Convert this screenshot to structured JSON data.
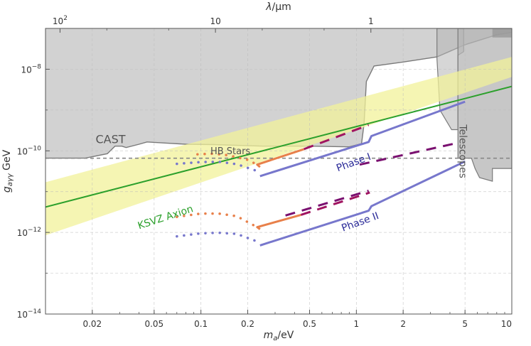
{
  "chart_data": {
    "type": "line",
    "title": "",
    "x_scale": "log",
    "y_scale": "log",
    "xlim": [
      0.01,
      10
    ],
    "ylim": [
      1e-14,
      1e-07
    ],
    "grid": true,
    "xlabel": "m_a/eV",
    "xlabel_parts": {
      "base": "m",
      "sub": "a",
      "rest": "/eV"
    },
    "ylabel_parts": {
      "base": "g",
      "sub": "aγγ",
      "rest": " GeV"
    },
    "top_axis": {
      "label_parts": {
        "base": "λ",
        "rest": "/μm"
      },
      "ticks": [
        {
          "wavelength_um": 100,
          "mass_eV": 0.0124,
          "label_base": "10",
          "label_exp": "2"
        },
        {
          "wavelength_um": 10,
          "mass_eV": 0.124,
          "label": "10"
        },
        {
          "wavelength_um": 1,
          "mass_eV": 1.24,
          "label": "1"
        }
      ]
    },
    "x_ticks": [
      {
        "value": 0.02,
        "label": "0.02"
      },
      {
        "value": 0.05,
        "label": "0.05"
      },
      {
        "value": 0.1,
        "label": "0.1"
      },
      {
        "value": 0.2,
        "label": "0.2"
      },
      {
        "value": 0.5,
        "label": "0.5"
      },
      {
        "value": 1,
        "label": "1"
      },
      {
        "value": 2,
        "label": "2"
      },
      {
        "value": 5,
        "label": "5"
      },
      {
        "value": 10,
        "label": "10"
      }
    ],
    "y_ticks": [
      {
        "value": 1e-14,
        "label_base": "10",
        "label_exp": "−14"
      },
      {
        "value": 1e-12,
        "label_base": "10",
        "label_exp": "−12"
      },
      {
        "value": 1e-10,
        "label_base": "10",
        "label_exp": "−10"
      },
      {
        "value": 1e-08,
        "label_base": "10",
        "label_exp": "−8"
      }
    ],
    "regions": [
      {
        "name": "CAST",
        "label": "CAST",
        "color": "#d2d2d2",
        "edge": "#7a7a7a",
        "boundary": [
          [
            0.01,
            6.6e-11
          ],
          [
            0.018,
            6.6e-11
          ],
          [
            0.025,
            8.5e-11
          ],
          [
            0.028,
            1.3e-10
          ],
          [
            0.031,
            1.3e-10
          ],
          [
            0.033,
            1.2e-10
          ],
          [
            0.04,
            1.45e-10
          ],
          [
            0.045,
            1.65e-10
          ],
          [
            0.06,
            1.55e-10
          ],
          [
            0.08,
            1.45e-10
          ],
          [
            0.12,
            1.42e-10
          ],
          [
            0.25,
            1.3e-10
          ],
          [
            0.5,
            1.3e-10
          ],
          [
            0.9,
            1.25e-10
          ],
          [
            1.08,
            1.5e-10
          ],
          [
            1.12,
            4.5e-10
          ],
          [
            1.16,
            5e-09
          ],
          [
            1.3,
            1.2e-08
          ],
          [
            2,
            1.5e-08
          ],
          [
            3.3,
            2e-08
          ],
          [
            5,
            4e-08
          ],
          [
            8,
            7e-08
          ],
          [
            10,
            8e-08
          ]
        ]
      },
      {
        "name": "Telescopes",
        "label": "Telescopes",
        "color": "#b4b4b4",
        "edge": "#7a7a7a",
        "polygon": [
          [
            3.3,
            1e-07
          ],
          [
            3.3,
            1.8e-08
          ],
          [
            3.45,
            1e-09
          ],
          [
            4.1,
            3.3e-10
          ],
          [
            4.5,
            3.3e-10
          ],
          [
            4.5,
            2.2e-08
          ],
          [
            4.9,
            2.7e-08
          ],
          [
            4.9,
            1e-07
          ]
        ],
        "band": [
          [
            4.5,
            1e-07
          ],
          [
            4.5,
            6.6e-11
          ],
          [
            5.5,
            6.6e-11
          ],
          [
            5.8,
            3.7e-11
          ],
          [
            6.2,
            2.2e-11
          ],
          [
            7.5,
            1.8e-11
          ],
          [
            7.5,
            3.7e-11
          ],
          [
            10,
            3.7e-11
          ],
          [
            10,
            1e-07
          ]
        ],
        "cap": [
          [
            7.5,
            1e-07
          ],
          [
            7.5,
            6e-08
          ],
          [
            10,
            6e-08
          ],
          [
            10,
            1e-07
          ]
        ]
      },
      {
        "name": "KSVZ band",
        "color": "#f2f29a",
        "lower": [
          [
            0.01,
            8.5e-13
          ],
          [
            10,
            6.5e-09
          ]
        ],
        "upper": [
          [
            0.01,
            1.7e-11
          ],
          [
            10,
            2e-08
          ]
        ]
      }
    ],
    "reference_lines": [
      {
        "name": "HB Stars",
        "label": "HB Stars",
        "y": 6.6e-11,
        "style": "dashed",
        "color": "#888888"
      }
    ],
    "series": [
      {
        "name": "KSVZ Axion",
        "label": "KSVZ Axion",
        "color": "#2ca02c",
        "style": "solid",
        "points": [
          [
            0.01,
            4.2e-12
          ],
          [
            10,
            3.8e-09
          ]
        ]
      },
      {
        "name": "Phase I",
        "label": "Phase I",
        "color": "#7777cc",
        "style": "solid",
        "points": [
          [
            0.24,
            2.4e-11
          ],
          [
            1.2,
            1.65e-10
          ],
          [
            1.25,
            2.3e-10
          ],
          [
            5,
            1.6e-09
          ]
        ]
      },
      {
        "name": "Phase II",
        "label": "Phase II",
        "color": "#7777cc",
        "style": "solid",
        "points": [
          [
            0.24,
            4.8e-13
          ],
          [
            1.2,
            3.4e-12
          ],
          [
            1.25,
            4.4e-12
          ],
          [
            5,
            5.5e-11
          ]
        ]
      },
      {
        "name": "",
        "color": "#e8804a",
        "style": "solid",
        "points": [
          [
            0.24,
            4e-11
          ],
          [
            0.23,
            4.6e-11
          ],
          [
            0.46,
            1.1e-10
          ]
        ]
      },
      {
        "name": "",
        "color": "#e8804a",
        "style": "solid",
        "points": [
          [
            0.24,
            1.2e-12
          ],
          [
            0.23,
            1.35e-12
          ],
          [
            0.44,
            2.7e-12
          ]
        ]
      },
      {
        "name": "",
        "color": "#a01460",
        "style": "dashed",
        "points": [
          [
            0.46,
            1.1e-10
          ],
          [
            1.2,
            4.3e-10
          ]
        ]
      },
      {
        "name": "",
        "color": "#a01460",
        "style": "dashed",
        "points": [
          [
            0.44,
            2.7e-12
          ],
          [
            1.22,
            9.5e-12
          ]
        ]
      },
      {
        "name": "",
        "color": "#7a1070",
        "style": "dashed",
        "points": [
          [
            0.35,
            2.6e-12
          ],
          [
            1.2,
            1.05e-11
          ]
        ]
      },
      {
        "name": "",
        "color": "#7a1070",
        "style": "dashed",
        "points": [
          [
            1.05,
            4.6e-11
          ],
          [
            4.6,
            1.6e-10
          ]
        ]
      },
      {
        "name": "",
        "color": "#e8804a",
        "style": "dotted",
        "points": [
          [
            0.095,
            8.2e-11
          ],
          [
            0.12,
            8.5e-11
          ],
          [
            0.15,
            7.8e-11
          ],
          [
            0.2,
            6e-11
          ],
          [
            0.23,
            4.6e-11
          ]
        ]
      },
      {
        "name": "",
        "color": "#7777cc",
        "style": "dotted",
        "points": [
          [
            0.07,
            4.8e-11
          ],
          [
            0.1,
            5.3e-11
          ],
          [
            0.13,
            5.4e-11
          ],
          [
            0.17,
            4.7e-11
          ],
          [
            0.23,
            3.2e-11
          ]
        ]
      },
      {
        "name": "",
        "color": "#e8804a",
        "style": "dotted",
        "points": [
          [
            0.07,
            2.4e-12
          ],
          [
            0.1,
            2.9e-12
          ],
          [
            0.13,
            2.9e-12
          ],
          [
            0.17,
            2.5e-12
          ],
          [
            0.23,
            1.35e-12
          ]
        ]
      },
      {
        "name": "",
        "color": "#7777cc",
        "style": "dotted",
        "points": [
          [
            0.07,
            8e-13
          ],
          [
            0.1,
            9.5e-13
          ],
          [
            0.13,
            9.8e-13
          ],
          [
            0.17,
            9.2e-13
          ],
          [
            0.23,
            6e-13
          ]
        ]
      }
    ],
    "annotations": [
      {
        "text": "CAST",
        "x": 0.021,
        "y": 1.55e-10,
        "color": "#555555",
        "rotate": 0
      },
      {
        "text": "HB Stars",
        "x": 0.115,
        "y": 8.3e-11,
        "color": "#555555",
        "rotate": 0
      },
      {
        "text": "KSVZ Axion",
        "x": 0.04,
        "y": 1.2e-12,
        "color": "#2ca02c",
        "rotate": -18
      },
      {
        "text": "Phase I",
        "x": 0.76,
        "y": 3.1e-11,
        "color": "#2b2b99",
        "rotate": -20
      },
      {
        "text": "Phase II",
        "x": 0.82,
        "y": 1.05e-12,
        "color": "#2b2b99",
        "rotate": -20
      },
      {
        "text": "Telescopes",
        "x": 4.6,
        "y": 4.4e-10,
        "color": "#555555",
        "rotate": 90
      }
    ]
  }
}
